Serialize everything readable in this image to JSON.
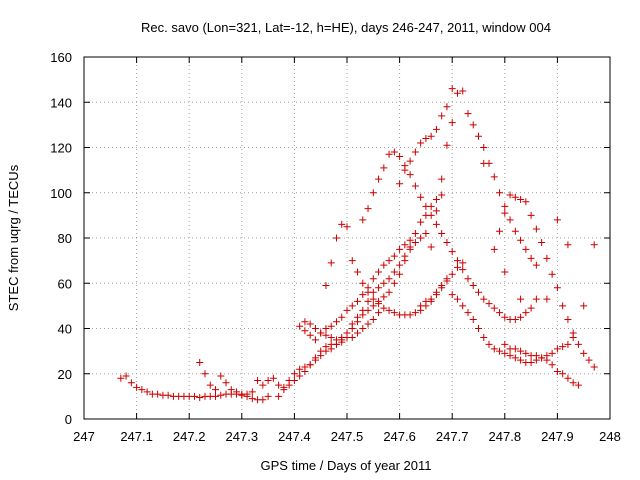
{
  "chart_data": {
    "type": "scatter",
    "title": "Rec. savo (Lon=321, Lat=-12, h=HE), days 246-247, 2011, window 004",
    "xlabel": "GPS time / Days of year 2011",
    "ylabel": "STEC from uqrg / TECUs",
    "xlim": [
      247,
      248
    ],
    "ylim": [
      0,
      160
    ],
    "x_ticks": [
      "247",
      "247.1",
      "247.2",
      "247.3",
      "247.4",
      "247.5",
      "247.6",
      "247.7",
      "247.8",
      "247.9",
      "248"
    ],
    "y_ticks": [
      "0",
      "20",
      "40",
      "60",
      "80",
      "100",
      "120",
      "140",
      "160"
    ],
    "grid": true,
    "marker": "+",
    "marker_color": "#cc0000",
    "points": [
      [
        247.07,
        18
      ],
      [
        247.08,
        19
      ],
      [
        247.09,
        16
      ],
      [
        247.1,
        14
      ],
      [
        247.11,
        13
      ],
      [
        247.12,
        12
      ],
      [
        247.13,
        11
      ],
      [
        247.14,
        11
      ],
      [
        247.15,
        10.5
      ],
      [
        247.16,
        10.5
      ],
      [
        247.17,
        10
      ],
      [
        247.18,
        10
      ],
      [
        247.19,
        10
      ],
      [
        247.2,
        10
      ],
      [
        247.21,
        10
      ],
      [
        247.22,
        9.5
      ],
      [
        247.23,
        10
      ],
      [
        247.24,
        10
      ],
      [
        247.25,
        10
      ],
      [
        247.26,
        10.5
      ],
      [
        247.27,
        11
      ],
      [
        247.28,
        11
      ],
      [
        247.29,
        11
      ],
      [
        247.3,
        10.5
      ],
      [
        247.31,
        10
      ],
      [
        247.32,
        9
      ],
      [
        247.33,
        8.5
      ],
      [
        247.34,
        8.5
      ],
      [
        247.35,
        10
      ],
      [
        247.22,
        25
      ],
      [
        247.23,
        20
      ],
      [
        247.24,
        15
      ],
      [
        247.25,
        13
      ],
      [
        247.26,
        19
      ],
      [
        247.27,
        16
      ],
      [
        247.28,
        13
      ],
      [
        247.29,
        12
      ],
      [
        247.3,
        11
      ],
      [
        247.31,
        11
      ],
      [
        247.32,
        12
      ],
      [
        247.33,
        17
      ],
      [
        247.34,
        15
      ],
      [
        247.35,
        17
      ],
      [
        247.36,
        18
      ],
      [
        247.37,
        15
      ],
      [
        247.38,
        13
      ],
      [
        247.39,
        17
      ],
      [
        247.4,
        20
      ],
      [
        247.41,
        22
      ],
      [
        247.42,
        23
      ],
      [
        247.43,
        24
      ],
      [
        247.44,
        27
      ],
      [
        247.45,
        30
      ],
      [
        247.46,
        32
      ],
      [
        247.47,
        33
      ],
      [
        247.48,
        33
      ],
      [
        247.49,
        34
      ],
      [
        247.5,
        36
      ],
      [
        247.51,
        36
      ],
      [
        247.52,
        38
      ],
      [
        247.53,
        40
      ],
      [
        247.54,
        42
      ],
      [
        247.55,
        44
      ],
      [
        247.56,
        47
      ],
      [
        247.37,
        10
      ],
      [
        247.38,
        14
      ],
      [
        247.39,
        15
      ],
      [
        247.4,
        17
      ],
      [
        247.41,
        19
      ],
      [
        247.42,
        21
      ],
      [
        247.43,
        24
      ],
      [
        247.44,
        26
      ],
      [
        247.45,
        28
      ],
      [
        247.46,
        30
      ],
      [
        247.47,
        31
      ],
      [
        247.48,
        33
      ],
      [
        247.49,
        35
      ],
      [
        247.5,
        38
      ],
      [
        247.51,
        40
      ],
      [
        247.52,
        43
      ],
      [
        247.53,
        46
      ],
      [
        247.54,
        48
      ],
      [
        247.55,
        50
      ],
      [
        247.56,
        52
      ],
      [
        247.57,
        54
      ],
      [
        247.58,
        56
      ],
      [
        247.59,
        60
      ],
      [
        247.6,
        64
      ],
      [
        247.61,
        70
      ],
      [
        247.62,
        76
      ],
      [
        247.63,
        82
      ],
      [
        247.64,
        87
      ],
      [
        247.65,
        90
      ],
      [
        247.66,
        94
      ],
      [
        247.67,
        97
      ],
      [
        247.68,
        99
      ],
      [
        247.42,
        43
      ],
      [
        247.43,
        42
      ],
      [
        247.44,
        40
      ],
      [
        247.45,
        38
      ],
      [
        247.46,
        37
      ],
      [
        247.47,
        36
      ],
      [
        247.48,
        35
      ],
      [
        247.49,
        36
      ],
      [
        247.5,
        38
      ],
      [
        247.51,
        42
      ],
      [
        247.52,
        45
      ],
      [
        247.53,
        48
      ],
      [
        247.54,
        52
      ],
      [
        247.55,
        56
      ],
      [
        247.56,
        58
      ],
      [
        247.57,
        60
      ],
      [
        247.58,
        62
      ],
      [
        247.59,
        65
      ],
      [
        247.6,
        68
      ],
      [
        247.61,
        72
      ],
      [
        247.62,
        75
      ],
      [
        247.63,
        78
      ],
      [
        247.64,
        80
      ],
      [
        247.65,
        82
      ],
      [
        247.41,
        41
      ],
      [
        247.42,
        39
      ],
      [
        247.43,
        37
      ],
      [
        247.44,
        35
      ],
      [
        247.45,
        38
      ],
      [
        247.46,
        40
      ],
      [
        247.47,
        41
      ],
      [
        247.48,
        43
      ],
      [
        247.49,
        45
      ],
      [
        247.5,
        48
      ],
      [
        247.51,
        50
      ],
      [
        247.52,
        52
      ],
      [
        247.53,
        55
      ],
      [
        247.54,
        58
      ],
      [
        247.55,
        62
      ],
      [
        247.56,
        65
      ],
      [
        247.57,
        68
      ],
      [
        247.58,
        70
      ],
      [
        247.59,
        72
      ],
      [
        247.6,
        75
      ],
      [
        247.61,
        77
      ],
      [
        247.62,
        79
      ],
      [
        247.46,
        59
      ],
      [
        247.47,
        69
      ],
      [
        247.48,
        80
      ],
      [
        247.49,
        86
      ],
      [
        247.5,
        85
      ],
      [
        247.51,
        70
      ],
      [
        247.52,
        65
      ],
      [
        247.53,
        60
      ],
      [
        247.54,
        56
      ],
      [
        247.55,
        53
      ],
      [
        247.56,
        51
      ],
      [
        247.57,
        49
      ],
      [
        247.58,
        48
      ],
      [
        247.59,
        47
      ],
      [
        247.6,
        46
      ],
      [
        247.61,
        46
      ],
      [
        247.62,
        46
      ],
      [
        247.63,
        47
      ],
      [
        247.64,
        48
      ],
      [
        247.65,
        50
      ],
      [
        247.66,
        52
      ],
      [
        247.67,
        55
      ],
      [
        247.68,
        58
      ],
      [
        247.69,
        61
      ],
      [
        247.7,
        64
      ],
      [
        247.71,
        67
      ],
      [
        247.72,
        69
      ],
      [
        247.53,
        88
      ],
      [
        247.54,
        93
      ],
      [
        247.55,
        100
      ],
      [
        247.56,
        106
      ],
      [
        247.57,
        111
      ],
      [
        247.58,
        117
      ],
      [
        247.59,
        118
      ],
      [
        247.6,
        116
      ],
      [
        247.61,
        112
      ],
      [
        247.62,
        108
      ],
      [
        247.63,
        103
      ],
      [
        247.64,
        98
      ],
      [
        247.65,
        94
      ],
      [
        247.66,
        90
      ],
      [
        247.67,
        86
      ],
      [
        247.68,
        82
      ],
      [
        247.69,
        78
      ],
      [
        247.7,
        74
      ],
      [
        247.71,
        70
      ],
      [
        247.72,
        66
      ],
      [
        247.73,
        62
      ],
      [
        247.74,
        59
      ],
      [
        247.75,
        56
      ],
      [
        247.76,
        53
      ],
      [
        247.77,
        51
      ],
      [
        247.78,
        49
      ],
      [
        247.79,
        47
      ],
      [
        247.8,
        45
      ],
      [
        247.81,
        44
      ],
      [
        247.82,
        44
      ],
      [
        247.83,
        45
      ],
      [
        247.84,
        47
      ],
      [
        247.85,
        49
      ],
      [
        247.86,
        53
      ],
      [
        247.6,
        104
      ],
      [
        247.61,
        110
      ],
      [
        247.62,
        114
      ],
      [
        247.63,
        118
      ],
      [
        247.64,
        122
      ],
      [
        247.65,
        124
      ],
      [
        247.66,
        125
      ],
      [
        247.67,
        128
      ],
      [
        247.68,
        134
      ],
      [
        247.69,
        138
      ],
      [
        247.7,
        146
      ],
      [
        247.71,
        144
      ],
      [
        247.72,
        145
      ],
      [
        247.73,
        135
      ],
      [
        247.74,
        130
      ],
      [
        247.75,
        125
      ],
      [
        247.76,
        120
      ],
      [
        247.77,
        113
      ],
      [
        247.78,
        107
      ],
      [
        247.79,
        100
      ],
      [
        247.8,
        94
      ],
      [
        247.81,
        88
      ],
      [
        247.82,
        83
      ],
      [
        247.83,
        79
      ],
      [
        247.84,
        75
      ],
      [
        247.85,
        71
      ],
      [
        247.86,
        68
      ],
      [
        247.64,
        50
      ],
      [
        247.65,
        52
      ],
      [
        247.66,
        53
      ],
      [
        247.67,
        56
      ],
      [
        247.68,
        59
      ],
      [
        247.69,
        62
      ],
      [
        247.7,
        55
      ],
      [
        247.71,
        53
      ],
      [
        247.72,
        50
      ],
      [
        247.73,
        47
      ],
      [
        247.74,
        44
      ],
      [
        247.75,
        40
      ],
      [
        247.76,
        36
      ],
      [
        247.77,
        33
      ],
      [
        247.78,
        31
      ],
      [
        247.79,
        30
      ],
      [
        247.8,
        29
      ],
      [
        247.81,
        28
      ],
      [
        247.82,
        27
      ],
      [
        247.83,
        26
      ],
      [
        247.84,
        25
      ],
      [
        247.85,
        25
      ],
      [
        247.86,
        26
      ],
      [
        247.87,
        27
      ],
      [
        247.88,
        28
      ],
      [
        247.89,
        29
      ],
      [
        247.9,
        31
      ],
      [
        247.91,
        32
      ],
      [
        247.92,
        33
      ],
      [
        247.93,
        36
      ],
      [
        247.78,
        75
      ],
      [
        247.79,
        83
      ],
      [
        247.8,
        91
      ],
      [
        247.81,
        99
      ],
      [
        247.82,
        98
      ],
      [
        247.83,
        97
      ],
      [
        247.84,
        96
      ],
      [
        247.85,
        90
      ],
      [
        247.86,
        84
      ],
      [
        247.87,
        78
      ],
      [
        247.88,
        71
      ],
      [
        247.89,
        64
      ],
      [
        247.9,
        58
      ],
      [
        247.91,
        50
      ],
      [
        247.92,
        44
      ],
      [
        247.93,
        38
      ],
      [
        247.94,
        33
      ],
      [
        247.95,
        29
      ],
      [
        247.96,
        26
      ],
      [
        247.97,
        23
      ],
      [
        247.8,
        33
      ],
      [
        247.81,
        31
      ],
      [
        247.82,
        31
      ],
      [
        247.83,
        30
      ],
      [
        247.84,
        29
      ],
      [
        247.85,
        28
      ],
      [
        247.86,
        28
      ],
      [
        247.87,
        27
      ],
      [
        247.88,
        26
      ],
      [
        247.89,
        24
      ],
      [
        247.9,
        21
      ],
      [
        247.91,
        20
      ],
      [
        247.92,
        18
      ],
      [
        247.93,
        16
      ],
      [
        247.94,
        15
      ],
      [
        247.69,
        121
      ],
      [
        247.7,
        131
      ],
      [
        247.68,
        106
      ],
      [
        247.67,
        92
      ],
      [
        247.66,
        76
      ],
      [
        247.88,
        53
      ],
      [
        247.9,
        88
      ],
      [
        247.92,
        77
      ],
      [
        247.95,
        50
      ],
      [
        247.97,
        77
      ],
      [
        247.83,
        53
      ],
      [
        247.8,
        65
      ],
      [
        247.76,
        113
      ]
    ]
  }
}
